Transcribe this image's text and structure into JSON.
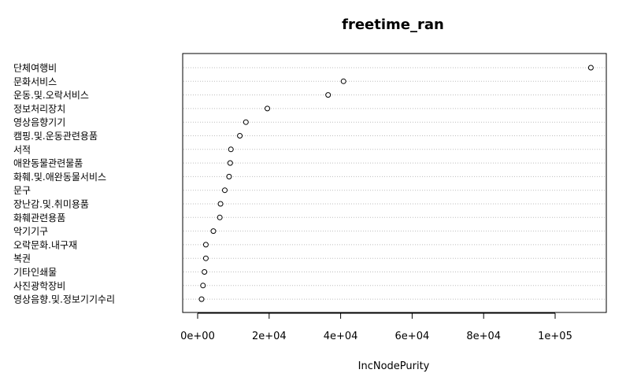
{
  "chart_data": {
    "type": "scatter",
    "title": "freetime_ran",
    "xlabel": "IncNodePurity",
    "ylabel": "",
    "xlim": [
      0,
      115000
    ],
    "x_ticks": [
      0,
      20000,
      40000,
      60000,
      80000,
      100000
    ],
    "x_tick_labels": [
      "0e+00",
      "2e+04",
      "4e+04",
      "6e+04",
      "8e+04",
      "1e+05"
    ],
    "grid": "dotted horizontal lines per category",
    "categories": [
      "단체여행비",
      "문화서비스",
      "운동.및.오락서비스",
      "정보처리장치",
      "영상음향기기",
      "캠핑.및.운동관련용품",
      "서적",
      "애완동물관련물품",
      "화훼.및.애완동물서비스",
      "문구",
      "장난감.및.취미용품",
      "화훼관련용품",
      "악기기구",
      "오락문화.내구재",
      "복권",
      "기타인쇄물",
      "사진광학장비",
      "영상음향.및.정보기기수리"
    ],
    "values": [
      110000,
      40800,
      36500,
      19500,
      13500,
      11800,
      9300,
      9100,
      8800,
      7600,
      6400,
      6200,
      4400,
      2300,
      2300,
      1900,
      1500,
      1100
    ]
  }
}
